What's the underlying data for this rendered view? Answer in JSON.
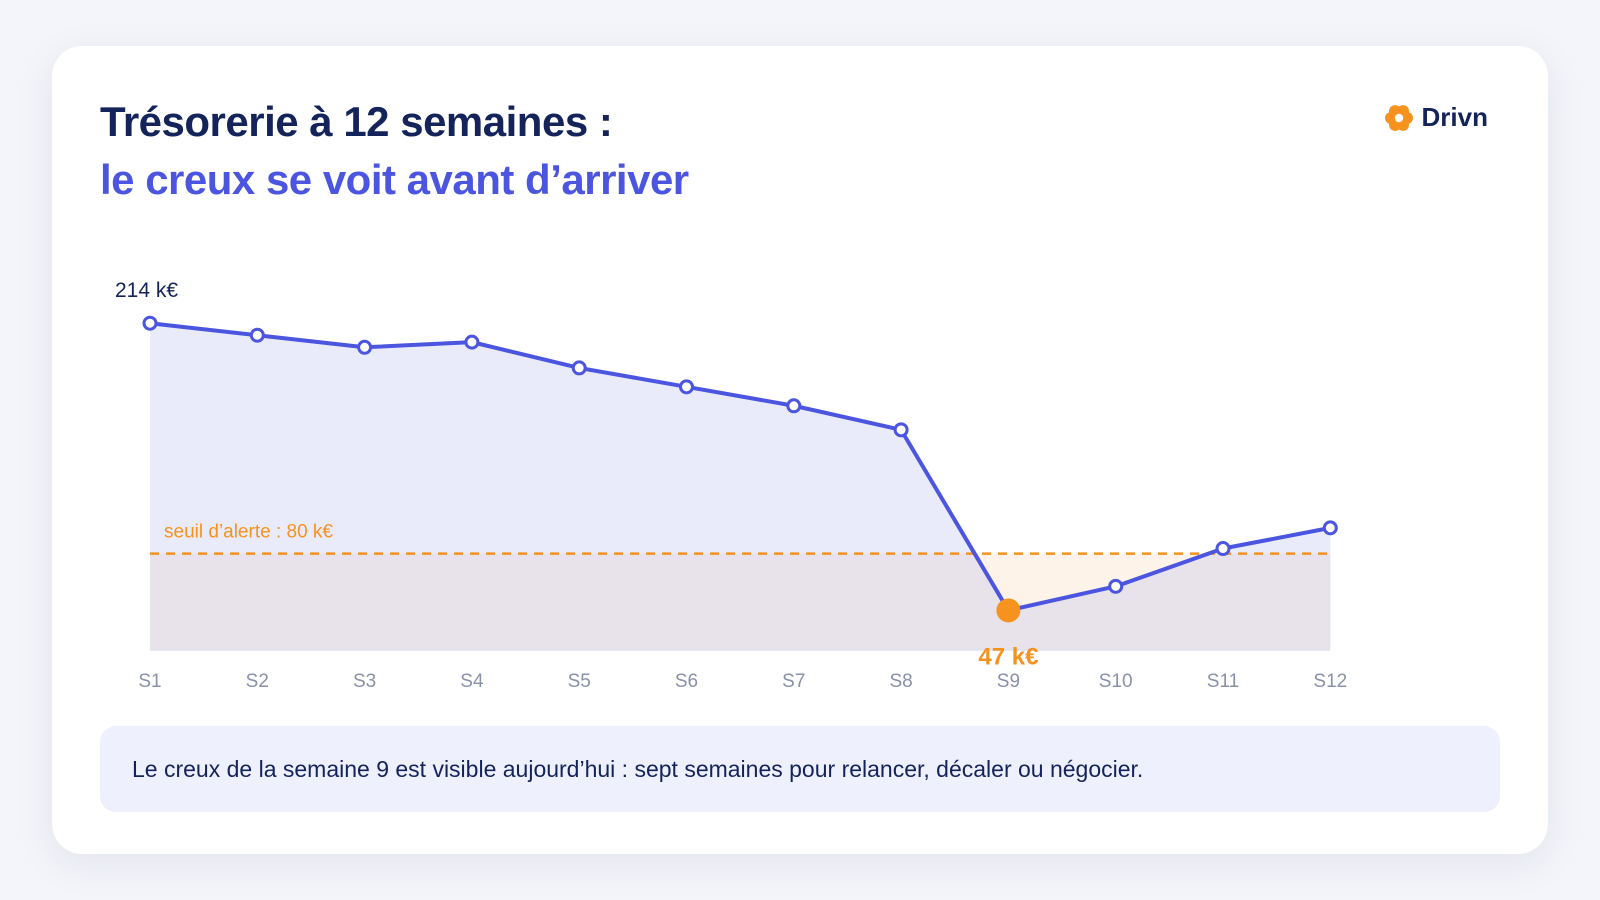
{
  "header": {
    "title": "Trésorerie à 12 semaines :",
    "subtitle": "le creux se voit avant d’arriver"
  },
  "brand": {
    "name": "Drivn",
    "logo_icon": "flower-logo-icon",
    "logo_color": "#f6921e"
  },
  "colors": {
    "series": "#4b55e0",
    "area_fill": "#e9ebfb",
    "threshold": "#f6921e",
    "threshold_fill": "#fdf3e8",
    "below_band": "#e8e2ea",
    "min_marker": "#f6921e",
    "axis_text": "#8a90a8"
  },
  "chart_data": {
    "type": "area",
    "categories": [
      "S1",
      "S2",
      "S3",
      "S4",
      "S5",
      "S6",
      "S7",
      "S8",
      "S9",
      "S10",
      "S11",
      "S12"
    ],
    "series": [
      {
        "values": [
          214,
          207,
          200,
          203,
          188,
          177,
          166,
          152,
          47,
          61,
          83,
          95
        ]
      }
    ],
    "ylim": [
      24,
      224
    ],
    "grid": false,
    "threshold": {
      "value": 80,
      "label": "seuil d’alerte : 80 k€"
    },
    "annotations": [
      {
        "category": "S1",
        "text": "214 k€",
        "style": "start"
      },
      {
        "category": "S9",
        "text": "47 k€",
        "style": "min"
      }
    ]
  },
  "note": {
    "text": "Le creux de la semaine 9 est visible aujourd’hui : sept semaines pour relancer, décaler ou négocier."
  }
}
